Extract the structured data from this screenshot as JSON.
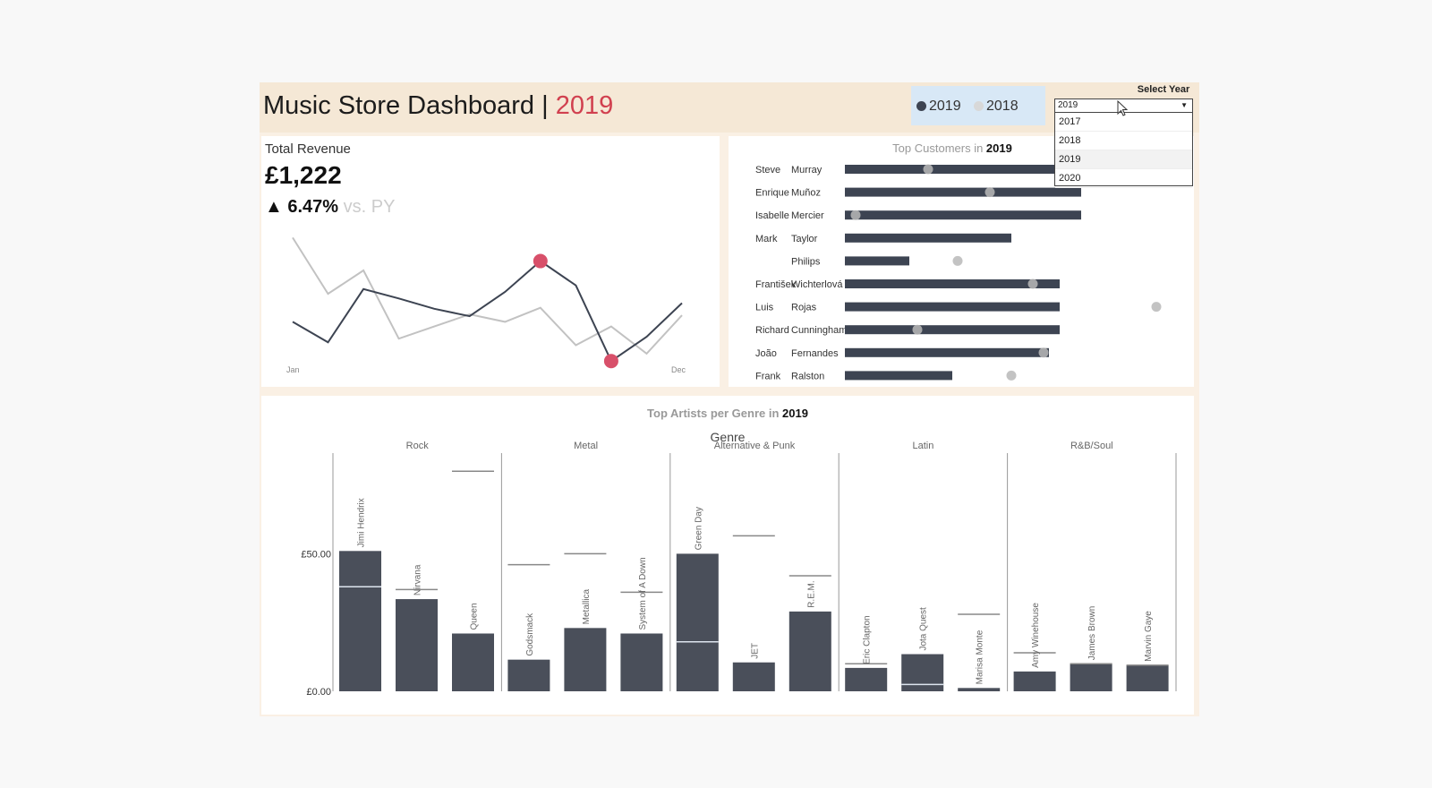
{
  "header": {
    "title": "Music Store Dashboard | ",
    "year": "2019"
  },
  "legend": {
    "items": [
      {
        "label": "2019",
        "color": "#3d4452"
      },
      {
        "label": "2018",
        "color": "#d0d0d0"
      }
    ]
  },
  "year_filter": {
    "label": "Select Year",
    "value": "2019",
    "options": [
      "2017",
      "2018",
      "2019",
      "2020"
    ]
  },
  "revenue": {
    "label": "Total Revenue",
    "value": "£1,222",
    "change": "▲ 6.47%",
    "vs": " vs. PY"
  },
  "customers": {
    "title": "Top Customers in ",
    "year": "2019"
  },
  "artists": {
    "title": "Top Artists per Genre in ",
    "year": "2019",
    "genre_header": "Genre"
  },
  "chart_data": [
    {
      "type": "line",
      "x_labels": [
        "Jan",
        "Dec"
      ],
      "x": [
        "Jan",
        "Feb",
        "Mar",
        "Apr",
        "May",
        "Jun",
        "Jul",
        "Aug",
        "Sep",
        "Oct",
        "Nov",
        "Dec"
      ],
      "series": [
        {
          "name": "2019",
          "color": "#3d4452",
          "values": [
            0.6,
            0.38,
            0.95,
            0.85,
            0.74,
            0.66,
            0.92,
            1.25,
            0.99,
            0.18,
            0.44,
            0.8
          ]
        },
        {
          "name": "2018",
          "color": "#c2c2c2",
          "values": [
            1.5,
            0.9,
            1.15,
            0.42,
            0.55,
            0.68,
            0.6,
            0.75,
            0.35,
            0.55,
            0.26,
            0.67
          ]
        }
      ],
      "highlights": [
        {
          "series": "2019",
          "month": "Aug",
          "color": "#d8506a"
        },
        {
          "series": "2019",
          "month": "Oct",
          "color": "#d8506a"
        }
      ],
      "ylim": [
        0,
        1.6
      ]
    },
    {
      "type": "bar",
      "categories": [
        {
          "first": "Steve",
          "last": "Murray"
        },
        {
          "first": "Enrique",
          "last": "Muñoz"
        },
        {
          "first": "Isabelle",
          "last": "Mercier"
        },
        {
          "first": "Mark",
          "last": "Taylor"
        },
        {
          "first": "",
          "last": "Philips"
        },
        {
          "first": "František",
          "last": "Wichterlová"
        },
        {
          "first": "Luis",
          "last": "Rojas"
        },
        {
          "first": "Richard",
          "last": "Cunningham"
        },
        {
          "first": "João",
          "last": "Fernandes"
        },
        {
          "first": "Frank",
          "last": "Ralston"
        }
      ],
      "series": [
        {
          "name": "2019",
          "color": "#3d4452",
          "values": [
            44,
            44,
            44,
            31,
            12,
            40,
            40,
            40,
            38,
            20
          ]
        },
        {
          "name": "2018",
          "color": "#b8b8b8",
          "values": [
            15.5,
            27,
            2,
            null,
            21,
            35,
            58,
            13.5,
            37,
            31
          ]
        }
      ],
      "xlim": [
        0,
        60
      ]
    },
    {
      "type": "bar",
      "genres": [
        {
          "name": "Rock",
          "artists": [
            {
              "name": "Jimi Hendrix",
              "value": 51,
              "py": 38
            },
            {
              "name": "Nirvana",
              "value": 33.5,
              "py": 37
            },
            {
              "name": "Queen",
              "value": 21,
              "py": 80
            }
          ]
        },
        {
          "name": "Metal",
          "artists": [
            {
              "name": "Godsmack",
              "value": 11.5,
              "py": 46
            },
            {
              "name": "Metallica",
              "value": 23,
              "py": 50
            },
            {
              "name": "System of A Down",
              "value": 21,
              "py": 36
            }
          ]
        },
        {
          "name": "Alternative & Punk",
          "artists": [
            {
              "name": "Green Day",
              "value": 50,
              "py": 18
            },
            {
              "name": "JET",
              "value": 10.5,
              "py": 56.5
            },
            {
              "name": "R.E.M.",
              "value": 29,
              "py": 42
            }
          ]
        },
        {
          "name": "Latin",
          "artists": [
            {
              "name": "Eric Clapton",
              "value": 8.5,
              "py": 10
            },
            {
              "name": "Jota Quest",
              "value": 13.5,
              "py": 2.5
            },
            {
              "name": "Marisa Monte",
              "value": 1.2,
              "py": 28
            }
          ]
        },
        {
          "name": "R&B/Soul",
          "artists": [
            {
              "name": "Amy Winehouse",
              "value": 7.2,
              "py": 14
            },
            {
              "name": "James Brown",
              "value": 10,
              "py": 10
            },
            {
              "name": "Marvin Gaye",
              "value": 9.5,
              "py": 9.5
            }
          ]
        }
      ],
      "y_ticks": [
        "£0.00",
        "£50.00"
      ],
      "ylim": [
        0,
        83
      ]
    }
  ]
}
